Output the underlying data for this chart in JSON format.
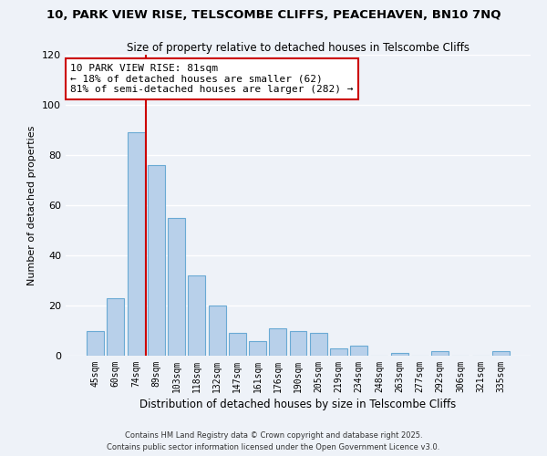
{
  "title1": "10, PARK VIEW RISE, TELSCOMBE CLIFFS, PEACEHAVEN, BN10 7NQ",
  "title2": "Size of property relative to detached houses in Telscombe Cliffs",
  "xlabel": "Distribution of detached houses by size in Telscombe Cliffs",
  "ylabel": "Number of detached properties",
  "bar_labels": [
    "45sqm",
    "60sqm",
    "74sqm",
    "89sqm",
    "103sqm",
    "118sqm",
    "132sqm",
    "147sqm",
    "161sqm",
    "176sqm",
    "190sqm",
    "205sqm",
    "219sqm",
    "234sqm",
    "248sqm",
    "263sqm",
    "277sqm",
    "292sqm",
    "306sqm",
    "321sqm",
    "335sqm"
  ],
  "bar_values": [
    10,
    23,
    89,
    76,
    55,
    32,
    20,
    9,
    6,
    11,
    10,
    9,
    3,
    4,
    0,
    1,
    0,
    2,
    0,
    0,
    2
  ],
  "bar_color": "#b8d0ea",
  "bar_edge_color": "#6aaad4",
  "ylim": [
    0,
    120
  ],
  "yticks": [
    0,
    20,
    40,
    60,
    80,
    100,
    120
  ],
  "property_line_label": "10 PARK VIEW RISE: 81sqm",
  "annotation_line1": "← 18% of detached houses are smaller (62)",
  "annotation_line2": "81% of semi-detached houses are larger (282) →",
  "annotation_box_color": "#ffffff",
  "annotation_box_edge_color": "#cc0000",
  "line_color": "#cc0000",
  "footer1": "Contains HM Land Registry data © Crown copyright and database right 2025.",
  "footer2": "Contains public sector information licensed under the Open Government Licence v3.0.",
  "background_color": "#eef2f8",
  "grid_color": "#ffffff",
  "line_x_index": 2.47
}
